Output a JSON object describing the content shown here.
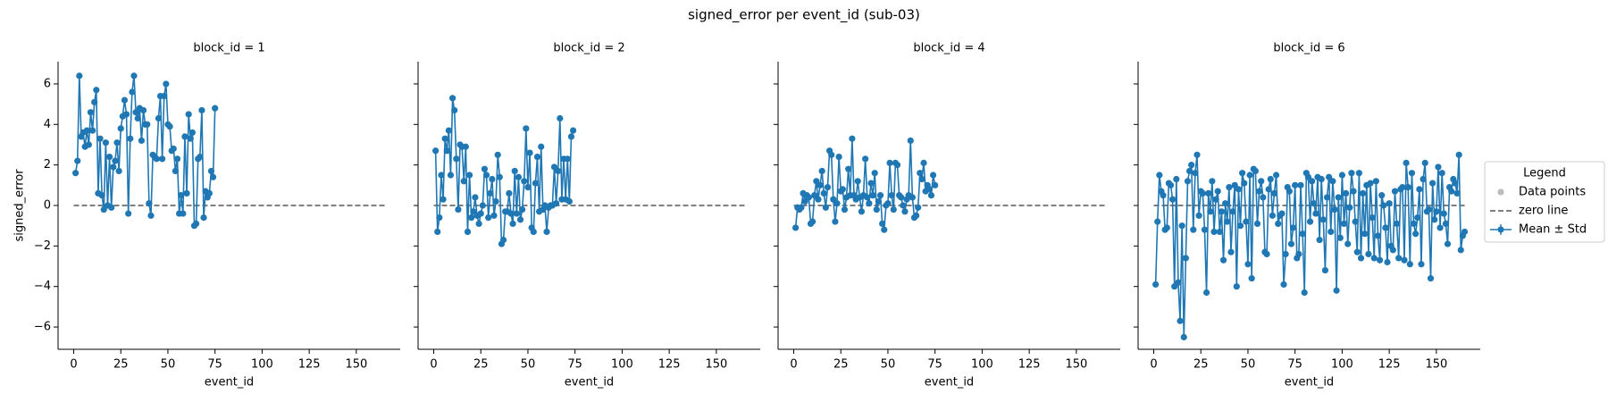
{
  "chart_data": {
    "type": "line",
    "title": "signed_error per event_id (sub-03)",
    "xlabel": "event_id",
    "ylabel": "signed_error",
    "xlim": [
      -8.3,
      173.3
    ],
    "ylim": [
      -7.1,
      7.1
    ],
    "xticks": [
      0,
      25,
      50,
      75,
      100,
      125,
      150
    ],
    "yticks": [
      {
        "value": -6,
        "label": "−6"
      },
      {
        "value": -4,
        "label": "−4"
      },
      {
        "value": -2,
        "label": "−2"
      },
      0,
      2,
      4,
      6
    ],
    "zero_line": {
      "y": 0,
      "x": [
        0,
        165
      ],
      "color": "#555555"
    },
    "legend": {
      "title": "Legend",
      "position": "right",
      "entries": [
        {
          "label": "Data points",
          "color": "#bbbbbb",
          "kind": "marker"
        },
        {
          "label": "zero line",
          "color": "#555555",
          "kind": "dashed"
        },
        {
          "label": "Mean ± Std",
          "color": "#1f77b4",
          "kind": "line-marker"
        }
      ]
    },
    "panels": [
      {
        "title": "block_id = 1",
        "color": "#1f77b4",
        "x": [
          1,
          2,
          3,
          4,
          5,
          6,
          7,
          8,
          9,
          10,
          11,
          12,
          13,
          14,
          15,
          16,
          17,
          18,
          19,
          20,
          21,
          22,
          23,
          24,
          25,
          26,
          27,
          28,
          29,
          30,
          31,
          32,
          33,
          34,
          35,
          36,
          37,
          38,
          39,
          40,
          41,
          42,
          43,
          44,
          45,
          46,
          47,
          48,
          49,
          50,
          51,
          52,
          53,
          54,
          55,
          56,
          57,
          58,
          59,
          60,
          61,
          62,
          63,
          64,
          65,
          66,
          67,
          68,
          69,
          70,
          71,
          72,
          73,
          74,
          75
        ],
        "values": [
          1.6,
          2.2,
          6.4,
          3.4,
          3.6,
          2.9,
          3.7,
          3.0,
          4.6,
          3.7,
          5.1,
          5.7,
          0.6,
          3.3,
          0.5,
          -0.2,
          3.1,
          0.0,
          2.4,
          -0.1,
          1.9,
          2.2,
          3.1,
          1.7,
          3.8,
          4.4,
          5.2,
          4.5,
          -0.4,
          3.3,
          5.6,
          6.4,
          4.6,
          4.3,
          4.8,
          3.2,
          4.7,
          4.0,
          4.0,
          0.1,
          -0.5,
          2.5,
          2.4,
          2.3,
          4.3,
          5.4,
          2.3,
          5.4,
          6.0,
          4.0,
          3.9,
          2.7,
          2.8,
          1.7,
          2.3,
          -0.4,
          0.5,
          -0.4,
          3.4,
          0.6,
          4.5,
          3.3,
          3.6,
          -1.0,
          -0.9,
          2.3,
          2.4,
          4.7,
          -0.6,
          0.7,
          0.4,
          0.6,
          1.7,
          1.4,
          4.8
        ]
      },
      {
        "title": "block_id = 2",
        "color": "#1f77b4",
        "x": [
          1,
          2,
          3,
          4,
          5,
          6,
          7,
          8,
          9,
          10,
          11,
          12,
          13,
          14,
          15,
          16,
          17,
          18,
          19,
          20,
          21,
          22,
          23,
          24,
          25,
          26,
          27,
          28,
          29,
          30,
          31,
          32,
          33,
          34,
          35,
          36,
          37,
          38,
          39,
          40,
          41,
          42,
          43,
          44,
          45,
          46,
          47,
          48,
          49,
          50,
          51,
          52,
          53,
          54,
          55,
          56,
          57,
          58,
          59,
          60,
          61,
          62,
          63,
          64,
          65,
          66,
          67,
          68,
          69,
          70,
          71,
          72,
          73,
          74
        ],
        "values": [
          2.7,
          -1.3,
          -0.6,
          1.5,
          0.3,
          3.3,
          2.7,
          3.7,
          1.5,
          5.3,
          4.7,
          2.3,
          -0.2,
          3.0,
          2.9,
          1.2,
          2.9,
          -1.3,
          1.5,
          -0.6,
          -0.3,
          0.4,
          -0.5,
          -0.9,
          -0.4,
          0.0,
          1.8,
          1.5,
          -0.6,
          0.6,
          1.3,
          -0.5,
          0.2,
          2.5,
          1.4,
          -1.9,
          -1.7,
          -0.3,
          -0.3,
          0.6,
          -0.4,
          -0.9,
          1.7,
          -0.4,
          1.4,
          -0.7,
          -0.2,
          1.2,
          3.8,
          0.9,
          2.6,
          -1.1,
          -1.3,
          1.1,
          2.4,
          -0.3,
          2.9,
          -0.2,
          0.0,
          -1.3,
          -0.1,
          0.0,
          0.0,
          1.9,
          0.1,
          1.7,
          4.3,
          0.3,
          2.3,
          0.3,
          2.3,
          0.2,
          3.4,
          3.7
        ]
      },
      {
        "title": "block_id = 4",
        "color": "#1f77b4",
        "x": [
          1,
          2,
          3,
          4,
          5,
          6,
          7,
          8,
          9,
          10,
          11,
          12,
          13,
          14,
          15,
          16,
          17,
          18,
          19,
          20,
          21,
          22,
          23,
          24,
          25,
          26,
          27,
          28,
          29,
          30,
          31,
          32,
          33,
          34,
          35,
          36,
          37,
          38,
          39,
          40,
          41,
          42,
          43,
          44,
          45,
          46,
          47,
          48,
          49,
          50,
          51,
          52,
          53,
          54,
          55,
          56,
          57,
          58,
          59,
          60,
          61,
          62,
          63,
          64,
          65,
          66,
          67,
          68,
          69,
          70,
          71,
          72,
          73,
          74,
          75
        ],
        "values": [
          -1.1,
          -0.1,
          -0.2,
          -0.1,
          0.6,
          0.2,
          0.5,
          0.4,
          -0.9,
          -0.8,
          0.5,
          1.2,
          0.3,
          1.0,
          1.7,
          0.6,
          -0.1,
          0.9,
          2.7,
          2.5,
          0.3,
          -0.8,
          0.1,
          2.4,
          0.7,
          0.8,
          -0.2,
          0.4,
          1.8,
          0.5,
          3.3,
          0.5,
          0.3,
          1.2,
          0.4,
          -0.3,
          0.5,
          2.3,
          0.4,
          0.1,
          1.1,
          0.5,
          1.6,
          -0.2,
          0.2,
          0.5,
          -0.9,
          -1.2,
          0.0,
          0.1,
          2.1,
          0.5,
          -0.2,
          2.1,
          2.0,
          0.5,
          0.4,
          0.0,
          -0.3,
          0.3,
          0.5,
          3.2,
          0.4,
          -0.6,
          -0.5,
          -0.1,
          1.6,
          1.3,
          2.1,
          0.7,
          1.0,
          0.8,
          0.5,
          1.5,
          1.0
        ]
      },
      {
        "title": "block_id = 6",
        "color": "#1f77b4",
        "x": [
          1,
          2,
          3,
          4,
          5,
          6,
          7,
          8,
          9,
          10,
          11,
          12,
          13,
          14,
          15,
          16,
          17,
          18,
          19,
          20,
          21,
          22,
          23,
          24,
          25,
          26,
          27,
          28,
          29,
          30,
          31,
          32,
          33,
          34,
          35,
          36,
          37,
          38,
          39,
          40,
          41,
          42,
          43,
          44,
          45,
          46,
          47,
          48,
          49,
          50,
          51,
          52,
          53,
          54,
          55,
          56,
          57,
          58,
          59,
          60,
          61,
          62,
          63,
          64,
          65,
          66,
          67,
          68,
          69,
          70,
          71,
          72,
          73,
          74,
          75,
          76,
          77,
          78,
          79,
          80,
          81,
          82,
          83,
          84,
          85,
          86,
          87,
          88,
          89,
          90,
          91,
          92,
          93,
          94,
          95,
          96,
          97,
          98,
          99,
          100,
          101,
          102,
          103,
          104,
          105,
          106,
          107,
          108,
          109,
          110,
          111,
          112,
          113,
          114,
          115,
          116,
          117,
          118,
          119,
          120,
          121,
          122,
          123,
          124,
          125,
          126,
          127,
          128,
          129,
          130,
          131,
          132,
          133,
          134,
          135,
          136,
          137,
          138,
          139,
          140,
          141,
          142,
          143,
          144,
          145,
          146,
          147,
          148,
          149,
          150,
          151,
          152,
          153,
          154,
          155,
          156,
          157,
          158,
          159,
          160,
          161,
          162,
          163,
          164,
          165
        ],
        "values": [
          -3.9,
          -0.8,
          1.5,
          0.7,
          0.5,
          -1.2,
          -1.1,
          1.1,
          1.0,
          0.3,
          -4.0,
          1.3,
          -3.8,
          -5.7,
          -1.0,
          -6.5,
          -2.6,
          1.2,
          1.7,
          2.0,
          -1.2,
          1.6,
          2.5,
          -0.5,
          0.7,
          0.6,
          -1.2,
          -4.3,
          0.6,
          -0.3,
          1.2,
          -1.3,
          0.3,
          0.7,
          -1.3,
          -0.3,
          -2.7,
          0.1,
          -0.8,
          0.9,
          -2.3,
          -0.3,
          1.0,
          -4.0,
          0.8,
          -1.0,
          1.6,
          1.1,
          -0.8,
          -2.9,
          1.5,
          -3.6,
          1.8,
          1.7,
          -0.9,
          0.7,
          1.2,
          0.4,
          -2.3,
          -2.4,
          0.8,
          1.3,
          -0.5,
          0.6,
          1.5,
          -0.9,
          -0.5,
          -0.4,
          -3.9,
          -2.4,
          0.9,
          0.7,
          -1.9,
          -1.1,
          1.0,
          -2.6,
          -2.4,
          1.0,
          -1.4,
          -4.3,
          1.6,
          1.4,
          -0.8,
          1.2,
          0.1,
          -0.4,
          1.4,
          -1.7,
          1.3,
          -0.7,
          -3.2,
          0.4,
          1.4,
          -1.3,
          1.2,
          -0.2,
          -4.2,
          0.4,
          -1.6,
          1.5,
          -0.9,
          0.6,
          -1.9,
          -0.1,
          1.6,
          0.7,
          -0.8,
          -2.3,
          1.6,
          -2.6,
          0.6,
          -1.4,
          1.0,
          -2.4,
          1.1,
          -0.6,
          -2.6,
          1.2,
          -1.5,
          -2.7,
          0.5,
          0.0,
          -1.1,
          -2.8,
          0.1,
          -2.0,
          -2.2,
          0.7,
          -0.9,
          -2.6,
          0.8,
          0.9,
          -2.7,
          2.1,
          0.9,
          -2.9,
          1.6,
          -0.9,
          -1.4,
          -0.6,
          0.8,
          -2.9,
          1.3,
          2.1,
          -0.3,
          -0.2,
          -3.6,
          1.1,
          -0.7,
          -0.3,
          1.9,
          -1.1,
          1.6,
          -0.4,
          -0.9,
          -1.9,
          0.9,
          0.7,
          1.3,
          1.1,
          0.6,
          2.5,
          -2.2,
          -1.5,
          -1.3
        ]
      }
    ]
  }
}
